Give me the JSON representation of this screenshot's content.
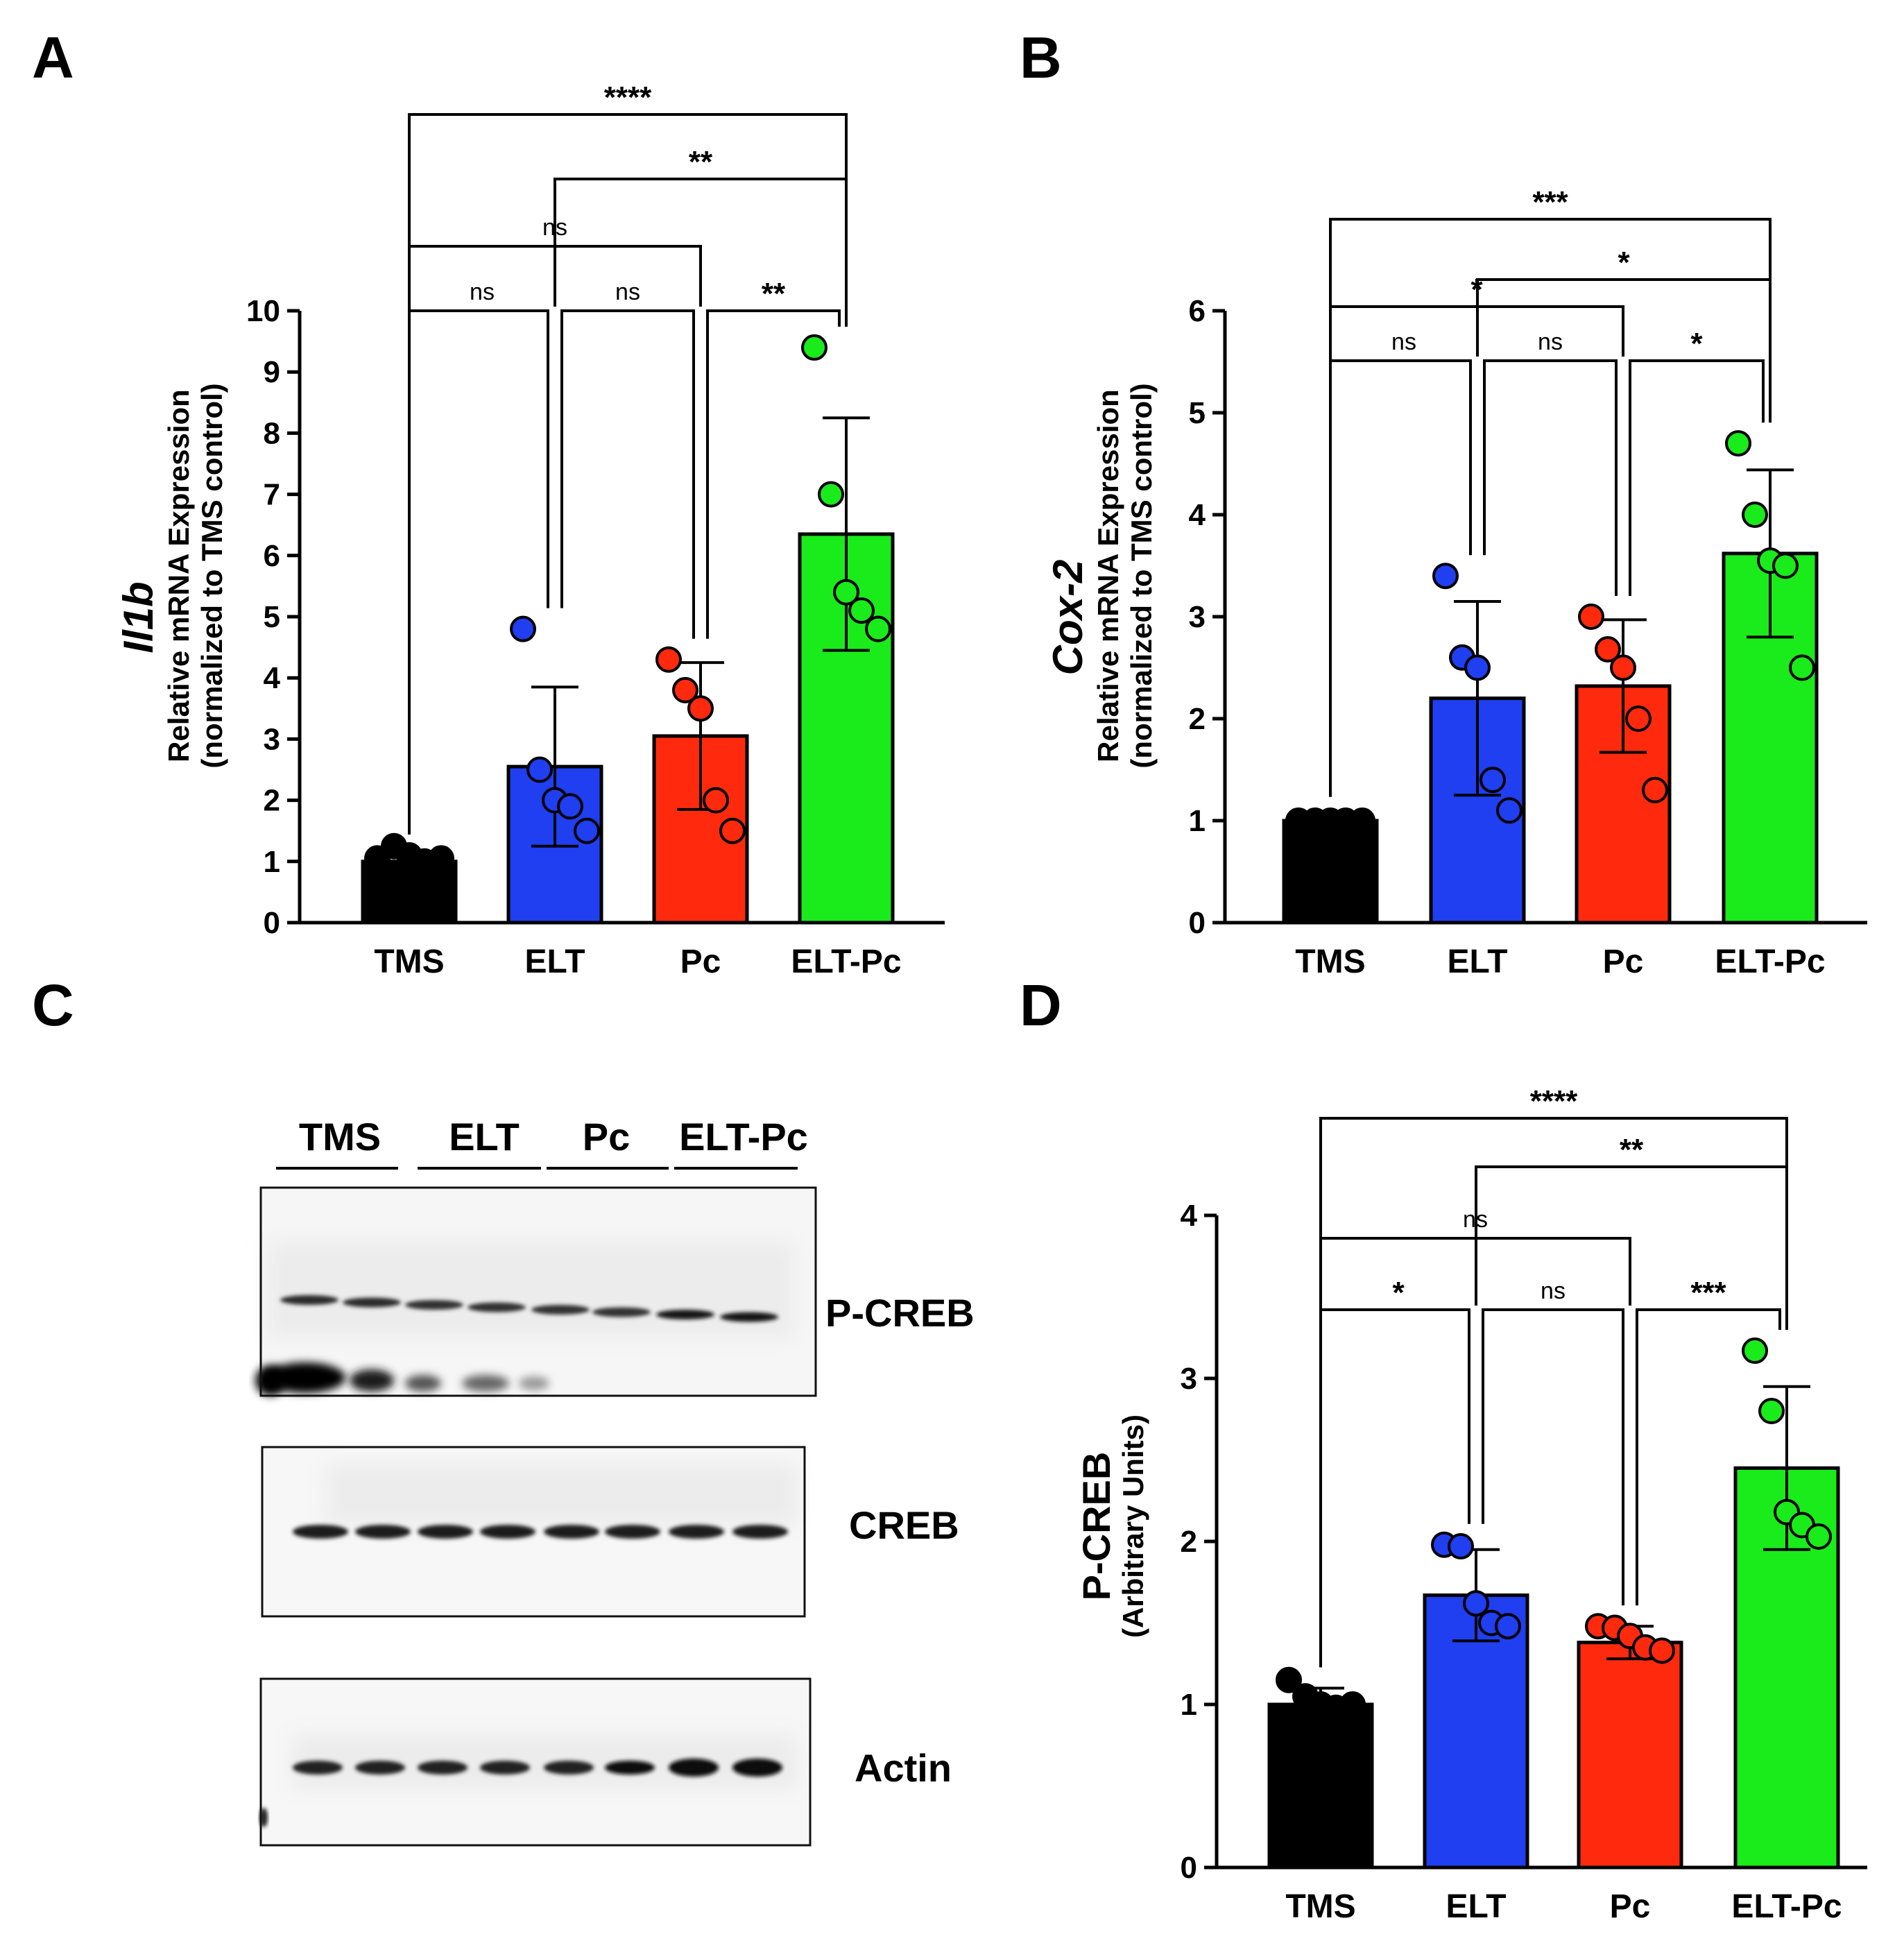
{
  "panels": {
    "A": "A",
    "B": "B",
    "C": "C",
    "D": "D"
  },
  "colors": {
    "TMS": "#000000",
    "ELT": "#1f3ff0",
    "Pc": "#ff2a0d",
    "ELT-Pc": "#1aeb1a"
  },
  "chart_data": [
    {
      "id": "A",
      "type": "bar",
      "ylabel_gene": "Il1b",
      "ylabel_line1": "Relative mRNA Expression",
      "ylabel_line2": "(normalized to TMS control)",
      "ylim": [
        0,
        10
      ],
      "ticks": [
        0,
        1,
        2,
        3,
        4,
        5,
        6,
        7,
        8,
        9,
        10
      ],
      "categories": [
        "TMS",
        "ELT",
        "Pc",
        "ELT-Pc"
      ],
      "values": [
        1.0,
        2.55,
        3.05,
        6.35
      ],
      "sd": [
        0.1,
        1.3,
        1.2,
        1.9
      ],
      "points": [
        [
          1.05,
          1.25,
          1.1,
          1.0,
          1.05
        ],
        [
          4.8,
          2.5,
          2.0,
          1.9,
          1.5
        ],
        [
          4.3,
          3.8,
          3.5,
          2.0,
          1.5
        ],
        [
          9.4,
          7.0,
          5.4,
          5.1,
          4.8
        ]
      ],
      "comparisons": [
        {
          "from": 0,
          "to": 1,
          "label": "ns",
          "level": 0
        },
        {
          "from": 1,
          "to": 2,
          "label": "ns",
          "level": 0
        },
        {
          "from": 2,
          "to": 3,
          "label": "**",
          "level": 0
        },
        {
          "from": 0,
          "to": 2,
          "label": "ns",
          "level": 1
        },
        {
          "from": 1,
          "to": 3,
          "label": "**",
          "level": 2
        },
        {
          "from": 0,
          "to": 3,
          "label": "****",
          "level": 3
        }
      ]
    },
    {
      "id": "B",
      "type": "bar",
      "ylabel_gene": "Cox-2",
      "ylabel_line1": "Relative mRNA Expression",
      "ylabel_line2": "(normalized to TMS control)",
      "ylim": [
        0,
        6
      ],
      "ticks": [
        0,
        1,
        2,
        3,
        4,
        5,
        6
      ],
      "categories": [
        "TMS",
        "ELT",
        "Pc",
        "ELT-Pc"
      ],
      "values": [
        1.0,
        2.2,
        2.32,
        3.62
      ],
      "sd": [
        0.03,
        0.95,
        0.65,
        0.82
      ],
      "points": [
        [
          1.0,
          1.0,
          1.0,
          1.0,
          1.0
        ],
        [
          3.4,
          2.6,
          2.5,
          1.4,
          1.1
        ],
        [
          3.0,
          2.68,
          2.5,
          2.0,
          1.3
        ],
        [
          4.7,
          4.0,
          3.55,
          3.5,
          2.5
        ]
      ],
      "comparisons": [
        {
          "from": 0,
          "to": 1,
          "label": "ns",
          "level": 0
        },
        {
          "from": 1,
          "to": 2,
          "label": "ns",
          "level": 0
        },
        {
          "from": 2,
          "to": 3,
          "label": "*",
          "level": 0
        },
        {
          "from": 0,
          "to": 2,
          "label": "*",
          "level": 1
        },
        {
          "from": 1,
          "to": 3,
          "label": "*",
          "level": 2
        },
        {
          "from": 0,
          "to": 3,
          "label": "***",
          "level": 3
        }
      ]
    },
    {
      "id": "D",
      "type": "bar",
      "ylabel_main": "P-CREB",
      "ylabel_sub": "(Arbitrary Units)",
      "ylim": [
        0,
        4
      ],
      "ticks": [
        0,
        1,
        2,
        3,
        4
      ],
      "categories": [
        "TMS",
        "ELT",
        "Pc",
        "ELT-Pc"
      ],
      "values": [
        1.0,
        1.67,
        1.38,
        2.45
      ],
      "sd": [
        0.1,
        0.28,
        0.1,
        0.5
      ],
      "points": [
        [
          1.15,
          1.05,
          1.0,
          0.98,
          1.0
        ],
        [
          1.98,
          1.97,
          1.62,
          1.5,
          1.48
        ],
        [
          1.48,
          1.47,
          1.42,
          1.35,
          1.33
        ],
        [
          3.17,
          2.8,
          2.18,
          2.1,
          2.03
        ]
      ],
      "comparisons": [
        {
          "from": 0,
          "to": 1,
          "label": "*",
          "level": 0
        },
        {
          "from": 1,
          "to": 2,
          "label": "ns",
          "level": 0
        },
        {
          "from": 2,
          "to": 3,
          "label": "***",
          "level": 0
        },
        {
          "from": 0,
          "to": 2,
          "label": "ns",
          "level": 1
        },
        {
          "from": 1,
          "to": 3,
          "label": "**",
          "level": 2
        },
        {
          "from": 0,
          "to": 3,
          "label": "****",
          "level": 3
        }
      ]
    }
  ],
  "blot": {
    "groups": [
      "TMS",
      "ELT",
      "Pc",
      "ELT-Pc"
    ],
    "labels": [
      "P-CREB",
      "CREB",
      "Actin"
    ]
  }
}
